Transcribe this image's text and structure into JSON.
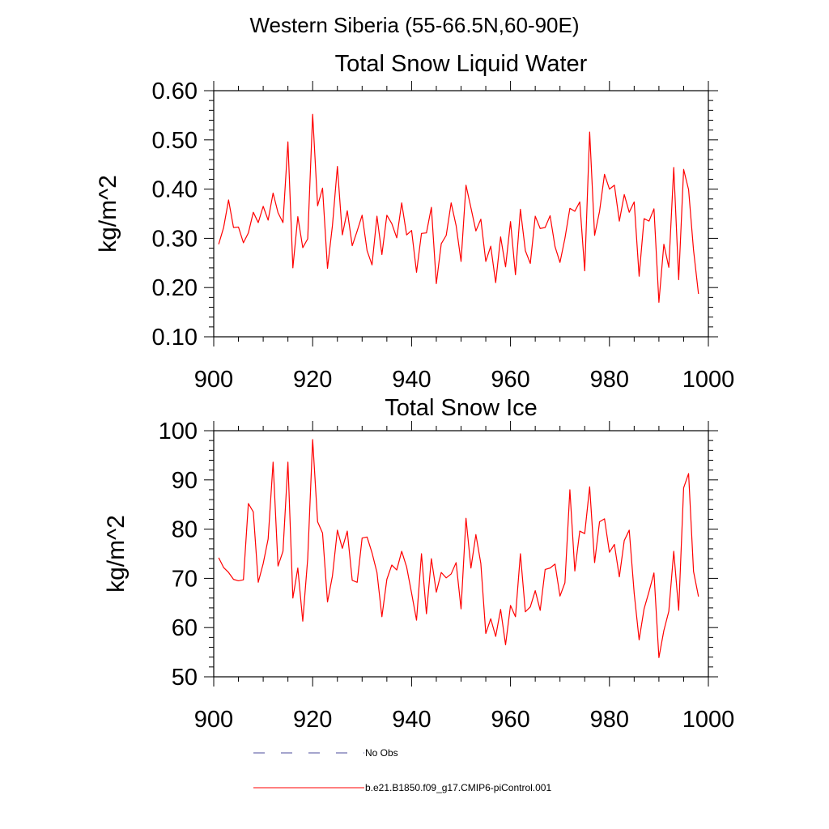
{
  "figure": {
    "supertitle": "Western Siberia (55-66.5N,60-90E)"
  },
  "legend": [
    {
      "label": "No Obs",
      "color": "#4b4b9b",
      "dash": "dashed"
    },
    {
      "label": "b.e21.B1850.f09_g17.CMIP6-piControl.001",
      "color": "#ff0000",
      "dash": "solid"
    }
  ],
  "chart_data": [
    {
      "type": "line",
      "title": "Total Snow Liquid Water",
      "xlabel": "",
      "ylabel": "kg/m^2",
      "xlim": [
        900,
        1000
      ],
      "ylim": [
        0.1,
        0.6
      ],
      "xticks": [
        900,
        920,
        940,
        960,
        980,
        1000
      ],
      "xtick_labels": [
        "900",
        "920",
        "940",
        "960",
        "980",
        "1000"
      ],
      "yticks": [
        0.1,
        0.2,
        0.3,
        0.4,
        0.5,
        0.6
      ],
      "ytick_labels": [
        "0.10",
        "0.20",
        "0.30",
        "0.40",
        "0.50",
        "0.60"
      ],
      "x_start": 901,
      "x_step": 1,
      "series": [
        {
          "color": "#ff0000",
          "values": [
            0.288,
            0.322,
            0.378,
            0.322,
            0.323,
            0.291,
            0.311,
            0.353,
            0.332,
            0.365,
            0.337,
            0.392,
            0.352,
            0.332,
            0.496,
            0.24,
            0.344,
            0.281,
            0.299,
            0.552,
            0.366,
            0.402,
            0.239,
            0.326,
            0.446,
            0.307,
            0.356,
            0.285,
            0.315,
            0.347,
            0.275,
            0.246,
            0.345,
            0.267,
            0.347,
            0.33,
            0.301,
            0.372,
            0.307,
            0.316,
            0.231,
            0.31,
            0.311,
            0.363,
            0.208,
            0.289,
            0.306,
            0.372,
            0.326,
            0.253,
            0.408,
            0.362,
            0.315,
            0.339,
            0.253,
            0.284,
            0.21,
            0.303,
            0.242,
            0.334,
            0.226,
            0.359,
            0.275,
            0.249,
            0.345,
            0.32,
            0.322,
            0.346,
            0.283,
            0.251,
            0.3,
            0.361,
            0.355,
            0.374,
            0.234,
            0.516,
            0.306,
            0.355,
            0.43,
            0.4,
            0.408,
            0.335,
            0.389,
            0.353,
            0.374,
            0.223,
            0.34,
            0.335,
            0.36,
            0.17,
            0.288,
            0.241,
            0.444,
            0.216,
            0.44,
            0.399,
            0.276,
            0.187
          ]
        }
      ]
    },
    {
      "type": "line",
      "title": "Total Snow Ice",
      "xlabel": "",
      "ylabel": "kg/m^2",
      "xlim": [
        900,
        1000
      ],
      "ylim": [
        50,
        100
      ],
      "xticks": [
        900,
        920,
        940,
        960,
        980,
        1000
      ],
      "xtick_labels": [
        "900",
        "920",
        "940",
        "960",
        "980",
        "1000"
      ],
      "yticks": [
        50,
        60,
        70,
        80,
        90,
        100
      ],
      "ytick_labels": [
        "50",
        "60",
        "70",
        "80",
        "90",
        "100"
      ],
      "x_start": 901,
      "x_step": 1,
      "series": [
        {
          "color": "#ff0000",
          "values": [
            74.2,
            72.2,
            71.2,
            69.8,
            69.5,
            69.7,
            85.2,
            83.5,
            69.2,
            73.0,
            78.0,
            93.6,
            72.5,
            75.5,
            93.6,
            66.0,
            72.1,
            61.3,
            74.0,
            98.2,
            81.5,
            79.2,
            65.2,
            70.5,
            79.8,
            76.1,
            79.6,
            69.6,
            69.2,
            78.2,
            78.4,
            75.2,
            71.2,
            62.2,
            69.8,
            72.7,
            71.7,
            75.5,
            72.3,
            67.0,
            61.5,
            75.0,
            62.8,
            74.0,
            67.2,
            71.2,
            70.1,
            70.9,
            73.2,
            63.8,
            82.2,
            72.1,
            78.9,
            73.0,
            58.8,
            61.8,
            58.2,
            63.7,
            56.5,
            64.5,
            62.2,
            75.0,
            63.2,
            64.2,
            67.5,
            63.5,
            71.8,
            72.1,
            72.9,
            66.4,
            69.1,
            88.0,
            71.5,
            79.6,
            79.1,
            88.6,
            73.2,
            81.5,
            82.1,
            75.3,
            76.9,
            70.3,
            77.7,
            79.8,
            67.0,
            57.5,
            63.8,
            67.3,
            71.1,
            53.9,
            59.4,
            63.3,
            75.5,
            63.5,
            88.4,
            91.3,
            71.4,
            66.3
          ]
        }
      ]
    }
  ]
}
